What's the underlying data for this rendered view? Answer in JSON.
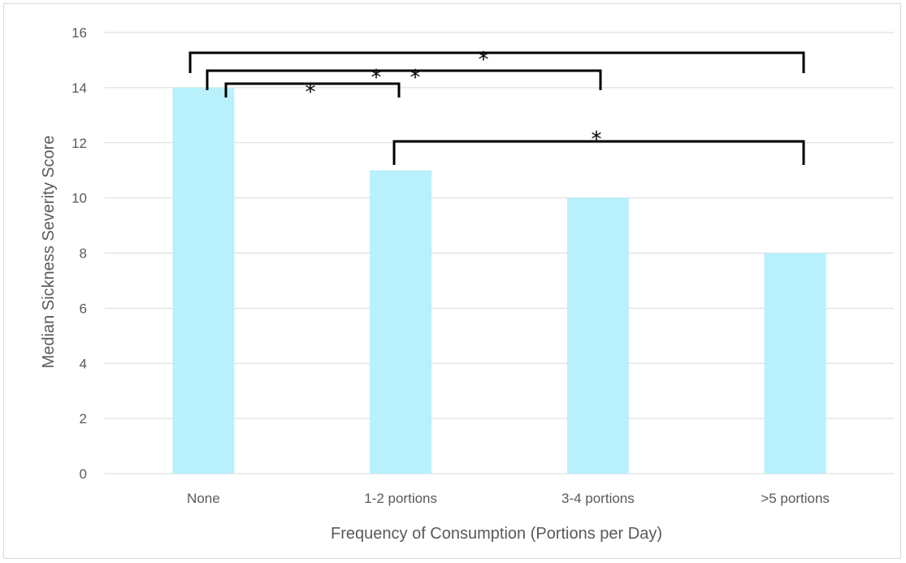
{
  "chart_data": {
    "type": "bar",
    "title": "",
    "xlabel": "Frequency of Consumption (Portions per Day)",
    "ylabel": "Median Sickness Severity Score",
    "categories": [
      "None",
      "1-2 portions",
      "3-4 portions",
      ">5 portions"
    ],
    "values": [
      14,
      11,
      10,
      8
    ],
    "ylim": [
      0,
      16
    ],
    "yticks": [
      0,
      2,
      4,
      6,
      8,
      10,
      12,
      14,
      16
    ],
    "grid": true,
    "legend": "none",
    "bar_color": "#b8f1fc",
    "significance": [
      {
        "from": "None",
        "to": ">5 portions",
        "marker": "*"
      },
      {
        "from": "None",
        "to": "3-4 portions",
        "marker": "* *"
      },
      {
        "from": "None",
        "to": "1-2 portions",
        "marker": "*"
      },
      {
        "from": "1-2 portions",
        "to": ">5 portions",
        "marker": "*"
      }
    ]
  }
}
